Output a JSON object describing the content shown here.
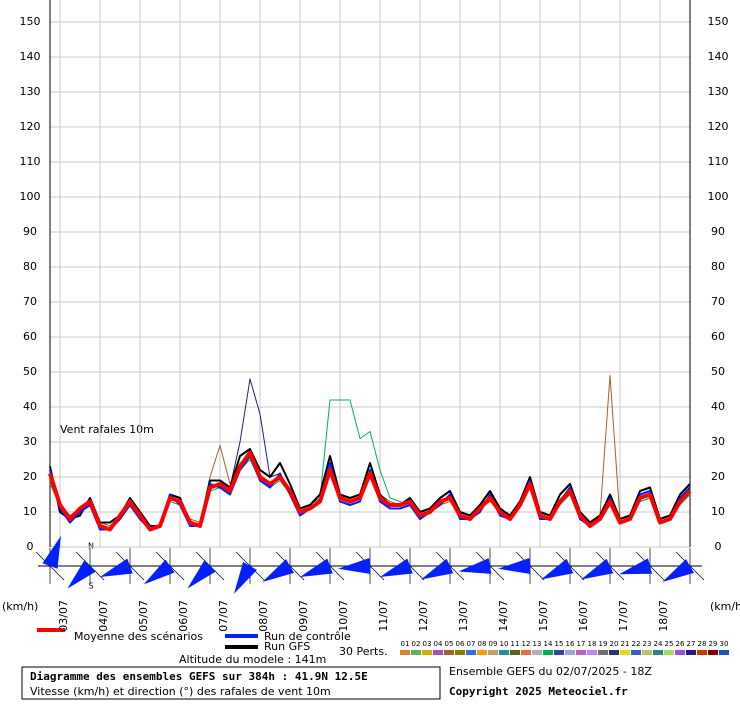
{
  "chart_data": {
    "type": "line",
    "title": "Diagramme des ensembles GEFS sur 384h : 41.9N 12.5E",
    "subtitle": "Vitesse (km/h) et direction (°) des rafales de vent 10m",
    "run_label": "Ensemble GEFS du 02/07/2025 - 18Z",
    "copyright": "Copyright 2025 Meteociel.fr",
    "altitude": "Altitude du modele : 141m",
    "annotation": "Vent rafales 10m",
    "y_label": "(km/h)",
    "compass": [
      "N",
      "S"
    ],
    "perts_label": "30 Perts.",
    "pert_labels": [
      "01",
      "02",
      "03",
      "04",
      "05",
      "06",
      "07",
      "08",
      "09",
      "10",
      "11",
      "12",
      "13",
      "14",
      "15",
      "16",
      "17",
      "18",
      "19",
      "20",
      "21",
      "22",
      "23",
      "24",
      "25",
      "26",
      "27",
      "28",
      "29",
      "30"
    ],
    "pert_colors": [
      "#e08030",
      "#60b060",
      "#d0b000",
      "#a050c0",
      "#a06030",
      "#808000",
      "#3070e0",
      "#f0a000",
      "#c0a070",
      "#2090a0",
      "#606020",
      "#e07040",
      "#b0b0b0",
      "#00b050",
      "#4040a0",
      "#a0a0e0",
      "#c060c0",
      "#c080ff",
      "#707070",
      "#303080",
      "#e0e000",
      "#3060c0",
      "#c0c060",
      "#308080",
      "#a0e060",
      "#a050e0",
      "#202080",
      "#c04000",
      "#800000",
      "#2050c0"
    ],
    "x": [
      0,
      6,
      12,
      18,
      24,
      30,
      36,
      42,
      48,
      54,
      60,
      66,
      72,
      78,
      84,
      90,
      96,
      102,
      108,
      114,
      120,
      126,
      132,
      138,
      144,
      150,
      156,
      162,
      168,
      174,
      180,
      186,
      192,
      198,
      204,
      210,
      216,
      222,
      228,
      234,
      240,
      246,
      252,
      258,
      264,
      270,
      276,
      282,
      288,
      294,
      300,
      306,
      312,
      318,
      324,
      330,
      336,
      342,
      348,
      354,
      360,
      366,
      372,
      378,
      384
    ],
    "xlim": [
      0,
      384
    ],
    "xticks": [
      {
        "value": 6,
        "label": "03/07"
      },
      {
        "value": 30,
        "label": "04/07"
      },
      {
        "value": 54,
        "label": "05/07"
      },
      {
        "value": 78,
        "label": "06/07"
      },
      {
        "value": 102,
        "label": "07/07"
      },
      {
        "value": 126,
        "label": "08/07"
      },
      {
        "value": 150,
        "label": "09/07"
      },
      {
        "value": 174,
        "label": "10/07"
      },
      {
        "value": 198,
        "label": "11/07"
      },
      {
        "value": 222,
        "label": "12/07"
      },
      {
        "value": 246,
        "label": "13/07"
      },
      {
        "value": 270,
        "label": "14/07"
      },
      {
        "value": 294,
        "label": "15/07"
      },
      {
        "value": 318,
        "label": "16/07"
      },
      {
        "value": 342,
        "label": "17/07"
      },
      {
        "value": 366,
        "label": "18/07"
      }
    ],
    "ylim": [
      0,
      150
    ],
    "yticks": [
      0,
      10,
      20,
      30,
      40,
      50,
      60,
      70,
      80,
      90,
      100,
      110,
      120,
      130,
      140,
      150
    ],
    "grid": true,
    "series": [
      {
        "pert": 4,
        "values": [
          18,
          12,
          9,
          11,
          12,
          7,
          6,
          9,
          12,
          10,
          6,
          6,
          14,
          13,
          8,
          7,
          20,
          29,
          18,
          24,
          26,
          20,
          17,
          19,
          16,
          11,
          12,
          14,
          22,
          15,
          13,
          14,
          20,
          15,
          13,
          12,
          13,
          10,
          11,
          12,
          13,
          10,
          9,
          11,
          13,
          11,
          9,
          12,
          17,
          10,
          9,
          13,
          15,
          10,
          7,
          9,
          49,
          8,
          9,
          13,
          14,
          8,
          9,
          13,
          15
        ]
      },
      {
        "pert": 13,
        "values": [
          19,
          11,
          8,
          10,
          12,
          6,
          5,
          8,
          12,
          9,
          5,
          6,
          13,
          12,
          7,
          6,
          16,
          17,
          15,
          22,
          25,
          19,
          17,
          19,
          15,
          10,
          11,
          14,
          42,
          42,
          42,
          31,
          33,
          22,
          14,
          13,
          12,
          9,
          10,
          12,
          14,
          9,
          8,
          11,
          14,
          10,
          8,
          12,
          17,
          9,
          8,
          12,
          15,
          9,
          6,
          8,
          12,
          7,
          8,
          13,
          14,
          7,
          8,
          12,
          15
        ]
      },
      {
        "pert": 26,
        "values": [
          20,
          12,
          8,
          11,
          13,
          6,
          5,
          9,
          13,
          9,
          5,
          6,
          14,
          13,
          7,
          6,
          17,
          18,
          17,
          30,
          48,
          38,
          20,
          21,
          16,
          10,
          11,
          13,
          22,
          14,
          13,
          14,
          21,
          14,
          12,
          12,
          13,
          9,
          10,
          13,
          14,
          9,
          8,
          11,
          14,
          10,
          8,
          12,
          18,
          9,
          8,
          13,
          16,
          9,
          6,
          8,
          13,
          7,
          8,
          14,
          15,
          7,
          8,
          13,
          16
        ]
      },
      {
        "name": "Run GFS",
        "color": "#000000",
        "width": 2,
        "values": [
          23,
          10,
          8,
          9,
          14,
          7,
          7,
          9,
          14,
          10,
          6,
          6,
          15,
          14,
          7,
          6,
          19,
          19,
          17,
          26,
          28,
          22,
          20,
          24,
          18,
          11,
          12,
          15,
          26,
          15,
          14,
          15,
          24,
          15,
          12,
          12,
          14,
          10,
          11,
          14,
          16,
          10,
          9,
          12,
          16,
          11,
          9,
          13,
          20,
          10,
          9,
          15,
          18,
          10,
          7,
          9,
          15,
          8,
          9,
          16,
          17,
          8,
          9,
          15,
          18
        ]
      },
      {
        "name": "Run de contrôle",
        "color": "#0020ff",
        "width": 2,
        "values": [
          22,
          11,
          7,
          10,
          12,
          5,
          5,
          8,
          12,
          8,
          5,
          6,
          15,
          12,
          6,
          6,
          18,
          17,
          15,
          22,
          26,
          19,
          17,
          21,
          15,
          9,
          11,
          13,
          24,
          13,
          12,
          13,
          22,
          13,
          11,
          11,
          12,
          8,
          10,
          12,
          15,
          8,
          8,
          10,
          15,
          9,
          8,
          12,
          19,
          8,
          8,
          13,
          17,
          8,
          6,
          8,
          14,
          7,
          8,
          15,
          16,
          7,
          8,
          14,
          17
        ]
      },
      {
        "name": "Moyenne des scénarios",
        "color": "#ff0000",
        "width": 4,
        "values": [
          21,
          12,
          8,
          11,
          13,
          6,
          5,
          9,
          13,
          9,
          5,
          6,
          14,
          13,
          7,
          6,
          17,
          18,
          16,
          23,
          27,
          20,
          18,
          20,
          16,
          10,
          11,
          13,
          22,
          14,
          13,
          14,
          21,
          14,
          12,
          12,
          13,
          9,
          10,
          13,
          14,
          9,
          8,
          11,
          14,
          10,
          8,
          12,
          18,
          9,
          8,
          13,
          16,
          9,
          6,
          8,
          13,
          7,
          8,
          14,
          15,
          7,
          8,
          13,
          16
        ]
      }
    ],
    "direction_x": [
      0,
      24,
      48,
      72,
      96,
      120,
      144,
      168,
      192,
      216,
      240,
      264,
      288,
      312,
      336,
      360,
      384
    ],
    "directions": [
      20,
      225,
      250,
      235,
      225,
      210,
      240,
      250,
      265,
      250,
      245,
      260,
      265,
      245,
      245,
      255,
      240
    ]
  }
}
